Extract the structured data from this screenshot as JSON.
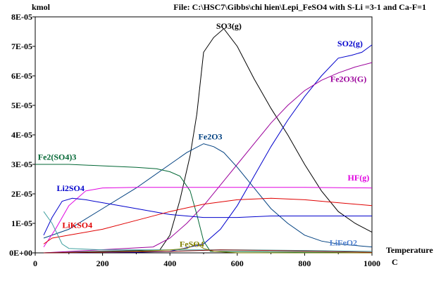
{
  "chart_data": {
    "type": "line",
    "title": "File: C:\\HSC7\\Gibbs\\chi hien\\Lepi_FeSO4 with S-Li =3-1 and Ca-F=1",
    "ylabel": "kmol",
    "xlabel": "Temperature",
    "xunit": "C",
    "xlim": [
      0,
      1000
    ],
    "ylim": [
      0,
      8e-05
    ],
    "xticks": [
      0,
      200,
      400,
      600,
      800,
      1000
    ],
    "xtick_labels": [
      "0",
      "200",
      "400",
      "600",
      "800",
      "1000"
    ],
    "yticks": [
      0,
      1e-05,
      2e-05,
      3e-05,
      4e-05,
      5e-05,
      6e-05,
      7e-05,
      8e-05
    ],
    "ytick_labels": [
      "0E+00",
      "1E-05",
      "2E-05",
      "3E-05",
      "4E-05",
      "5E-05",
      "6E-05",
      "7E-05",
      "8E-05"
    ],
    "grid": false,
    "legend": "inline labels",
    "series": [
      {
        "name": "SO3(g)",
        "color": "#000000",
        "points": [
          [
            25,
            0
          ],
          [
            100,
            2e-07
          ],
          [
            200,
            5e-07
          ],
          [
            300,
            8e-07
          ],
          [
            370,
            1e-06
          ],
          [
            400,
            6e-06
          ],
          [
            430,
            1.8e-05
          ],
          [
            460,
            3.3e-05
          ],
          [
            480,
            4.7e-05
          ],
          [
            500,
            6.8e-05
          ],
          [
            530,
            7.3e-05
          ],
          [
            560,
            7.6e-05
          ],
          [
            600,
            7e-05
          ],
          [
            650,
            5.9e-05
          ],
          [
            700,
            4.9e-05
          ],
          [
            750,
            4e-05
          ],
          [
            800,
            3e-05
          ],
          [
            850,
            2.1e-05
          ],
          [
            900,
            1.4e-05
          ],
          [
            950,
            1e-05
          ],
          [
            1000,
            7e-06
          ]
        ]
      },
      {
        "name": "SO2(g)",
        "color": "#0000cc",
        "points": [
          [
            25,
            0
          ],
          [
            300,
            2e-07
          ],
          [
            400,
            5e-07
          ],
          [
            500,
            3e-06
          ],
          [
            550,
            8e-06
          ],
          [
            600,
            1.6e-05
          ],
          [
            650,
            2.6e-05
          ],
          [
            700,
            3.6e-05
          ],
          [
            750,
            4.5e-05
          ],
          [
            800,
            5.3e-05
          ],
          [
            850,
            6e-05
          ],
          [
            900,
            6.6e-05
          ],
          [
            940,
            6.7e-05
          ],
          [
            970,
            6.8e-05
          ],
          [
            1000,
            7.05e-05
          ]
        ]
      },
      {
        "name": "Fe2O3(G)",
        "color": "#9b009b",
        "points": [
          [
            25,
            0
          ],
          [
            350,
            2e-06
          ],
          [
            400,
            5e-06
          ],
          [
            450,
            1e-05
          ],
          [
            500,
            1.6e-05
          ],
          [
            550,
            2.3e-05
          ],
          [
            600,
            3e-05
          ],
          [
            650,
            3.7e-05
          ],
          [
            700,
            4.4e-05
          ],
          [
            750,
            5e-05
          ],
          [
            800,
            5.5e-05
          ],
          [
            850,
            5.85e-05
          ],
          [
            900,
            6.1e-05
          ],
          [
            950,
            6.3e-05
          ],
          [
            1000,
            6.45e-05
          ]
        ]
      },
      {
        "name": "Fe2O3",
        "color": "#004080",
        "points": [
          [
            25,
            5e-06
          ],
          [
            100,
            8e-06
          ],
          [
            200,
            1.5e-05
          ],
          [
            300,
            2.2e-05
          ],
          [
            400,
            3e-05
          ],
          [
            450,
            3.4e-05
          ],
          [
            500,
            3.7e-05
          ],
          [
            530,
            3.6e-05
          ],
          [
            560,
            3.4e-05
          ],
          [
            600,
            2.9e-05
          ],
          [
            650,
            2.2e-05
          ],
          [
            700,
            1.5e-05
          ],
          [
            750,
            1e-05
          ],
          [
            800,
            6e-06
          ],
          [
            850,
            4e-06
          ],
          [
            900,
            3e-06
          ],
          [
            950,
            2.5e-06
          ],
          [
            1000,
            2e-06
          ]
        ]
      },
      {
        "name": "Fe2(SO4)3",
        "color": "#006633",
        "points": [
          [
            0,
            3e-05
          ],
          [
            100,
            3e-05
          ],
          [
            200,
            2.95e-05
          ],
          [
            300,
            2.9e-05
          ],
          [
            360,
            2.85e-05
          ],
          [
            400,
            2.75e-05
          ],
          [
            430,
            2.6e-05
          ],
          [
            460,
            2.1e-05
          ],
          [
            480,
            1.3e-05
          ],
          [
            500,
            4e-06
          ],
          [
            520,
            5e-07
          ],
          [
            1000,
            0
          ]
        ]
      },
      {
        "name": "HF(g)",
        "color": "#e000e0",
        "points": [
          [
            25,
            2e-06
          ],
          [
            60,
            8e-06
          ],
          [
            100,
            1.6e-05
          ],
          [
            150,
            2.1e-05
          ],
          [
            200,
            2.2e-05
          ],
          [
            300,
            2.22e-05
          ],
          [
            400,
            2.22e-05
          ],
          [
            600,
            2.22e-05
          ],
          [
            800,
            2.22e-05
          ],
          [
            1000,
            2.2e-05
          ]
        ]
      },
      {
        "name": "Li2SO4",
        "color": "#0000cc",
        "points": [
          [
            25,
            6e-06
          ],
          [
            50,
            1.2e-05
          ],
          [
            80,
            1.75e-05
          ],
          [
            110,
            1.85e-05
          ],
          [
            150,
            1.8e-05
          ],
          [
            200,
            1.7e-05
          ],
          [
            250,
            1.6e-05
          ],
          [
            300,
            1.5e-05
          ],
          [
            350,
            1.4e-05
          ],
          [
            400,
            1.3e-05
          ],
          [
            450,
            1.25e-05
          ],
          [
            500,
            1.2e-05
          ],
          [
            600,
            1.2e-05
          ],
          [
            700,
            1.25e-05
          ],
          [
            800,
            1.25e-05
          ],
          [
            900,
            1.25e-05
          ],
          [
            1000,
            1.25e-05
          ]
        ]
      },
      {
        "name": "LiKSO4",
        "color": "#e00000",
        "points": [
          [
            25,
            3e-06
          ],
          [
            50,
            5e-06
          ],
          [
            100,
            6e-06
          ],
          [
            200,
            8e-06
          ],
          [
            300,
            1.1e-05
          ],
          [
            400,
            1.4e-05
          ],
          [
            500,
            1.65e-05
          ],
          [
            600,
            1.8e-05
          ],
          [
            700,
            1.85e-05
          ],
          [
            800,
            1.8e-05
          ],
          [
            900,
            1.7e-05
          ],
          [
            1000,
            1.6e-05
          ]
        ]
      },
      {
        "name": "LiFeO2",
        "color": "#40a0a0",
        "points": [
          [
            25,
            1.4e-05
          ],
          [
            50,
            1e-05
          ],
          [
            80,
            3e-06
          ],
          [
            100,
            1.5e-06
          ],
          [
            200,
            1e-06
          ],
          [
            300,
            1e-06
          ],
          [
            400,
            1e-06
          ],
          [
            600,
            1e-06
          ],
          [
            800,
            8e-07
          ],
          [
            1000,
            5e-07
          ]
        ]
      },
      {
        "name": "FeSO4",
        "color": "#808000",
        "points": [
          [
            25,
            0
          ],
          [
            200,
            2e-07
          ],
          [
            300,
            5e-07
          ],
          [
            400,
            1e-06
          ],
          [
            450,
            1.5e-06
          ],
          [
            480,
            3e-06
          ],
          [
            500,
            1.5e-06
          ],
          [
            530,
            5e-07
          ],
          [
            600,
            0
          ],
          [
            1000,
            0
          ]
        ]
      },
      {
        "name": "",
        "color": "#800000",
        "points": [
          [
            25,
            0
          ],
          [
            200,
            2e-07
          ],
          [
            400,
            5e-07
          ],
          [
            550,
            1e-06
          ],
          [
            700,
            8e-07
          ],
          [
            850,
            5e-07
          ],
          [
            1000,
            2e-07
          ]
        ]
      }
    ],
    "labels": [
      {
        "text": "SO3(g)",
        "x": 575,
        "y": 7.6e-05,
        "color": "#000000"
      },
      {
        "text": "SO2(g)",
        "x": 935,
        "y": 7e-05,
        "color": "#0000cc"
      },
      {
        "text": "Fe2O3(G)",
        "x": 930,
        "y": 5.8e-05,
        "color": "#9b009b"
      },
      {
        "text": "Fe2O3",
        "x": 520,
        "y": 3.85e-05,
        "color": "#004080"
      },
      {
        "text": "Fe2(SO4)3",
        "x": 65,
        "y": 3.15e-05,
        "color": "#006633"
      },
      {
        "text": "HF(g)",
        "x": 960,
        "y": 2.45e-05,
        "color": "#e000e0"
      },
      {
        "text": "Li2SO4",
        "x": 105,
        "y": 2.1e-05,
        "color": "#0000cc"
      },
      {
        "text": "LiKSO4",
        "x": 125,
        "y": 8.5e-06,
        "color": "#e00000"
      },
      {
        "text": "FeSO4",
        "x": 465,
        "y": 2e-06,
        "color": "#808000"
      },
      {
        "text": "LiFeO2",
        "x": 915,
        "y": 2.5e-06,
        "color": "#5080d0"
      }
    ]
  }
}
